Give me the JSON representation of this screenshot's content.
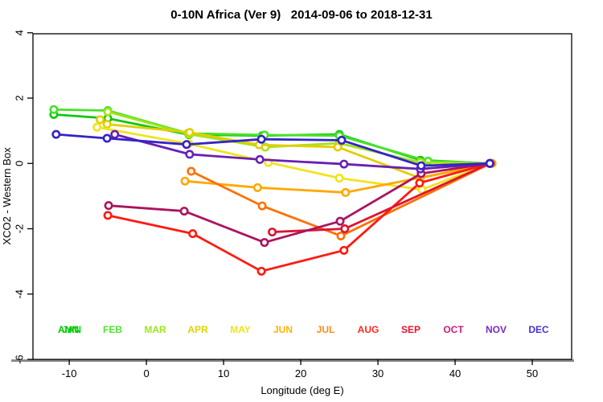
{
  "title": "0-10N Africa (Ver 9)   2014-09-06 to 2018-12-31",
  "chart_data": {
    "type": "line",
    "title": "0-10N Africa (Ver 9)   2014-09-06 to 2018-12-31",
    "xlabel": "Longitude (deg E)",
    "ylabel": "XCO2 - Western Box",
    "xlim": [
      -14.7,
      55.1
    ],
    "ylim": [
      -6.0,
      3.97
    ],
    "xticks": [
      -10,
      0,
      10,
      20,
      30,
      40,
      50
    ],
    "yticks": [
      -6,
      -4,
      -2,
      0,
      2,
      4
    ],
    "grid": false,
    "legend_position": "inside-bottom",
    "marker": "open-circle",
    "axis_color": "#000000",
    "baseline_color": "#8a8a8a",
    "series": [
      {
        "name": "JAN",
        "color": "#11C811",
        "points": [
          [
            -12,
            1.5
          ],
          [
            -5,
            1.38
          ],
          [
            5.5,
            0.88
          ],
          [
            15,
            0.85
          ],
          [
            25,
            0.89
          ],
          [
            35.5,
            0.1
          ],
          [
            44.5,
            0
          ]
        ]
      },
      {
        "name": "FEB",
        "color": "#46E22A",
        "points": [
          [
            -12,
            1.65
          ],
          [
            -5,
            1.62
          ],
          [
            5.4,
            0.92
          ],
          [
            15.3,
            0.87
          ],
          [
            25,
            0.85
          ],
          [
            36.5,
            0.07
          ],
          [
            44.5,
            0
          ]
        ]
      },
      {
        "name": "MAR",
        "color": "#A2E414",
        "points": [
          [
            -5,
            1.58
          ],
          [
            5.5,
            0.9
          ],
          [
            15.4,
            0.5
          ],
          [
            25,
            0.62
          ],
          [
            35.5,
            0.03
          ],
          [
            44.5,
            0
          ]
        ]
      },
      {
        "name": "APR",
        "color": "#E2CE00",
        "points": [
          [
            -6,
            1.34
          ],
          [
            -5.1,
            1.2
          ],
          [
            5.6,
            0.95
          ],
          [
            14.6,
            0.57
          ],
          [
            24.8,
            0.5
          ],
          [
            35.5,
            -0.45
          ],
          [
            44.5,
            0
          ]
        ]
      },
      {
        "name": "MAY",
        "color": "#F0E41E",
        "points": [
          [
            -6.4,
            1.11
          ],
          [
            5.5,
            0.6
          ],
          [
            15.8,
            0.03
          ],
          [
            25,
            -0.45
          ],
          [
            35.7,
            -0.8
          ],
          [
            44.5,
            0
          ]
        ]
      },
      {
        "name": "JUN",
        "color": "#FFA800",
        "points": [
          [
            5,
            -0.54
          ],
          [
            14.4,
            -0.74
          ],
          [
            25.8,
            -0.89
          ],
          [
            44.8,
            0
          ]
        ]
      },
      {
        "name": "JUL",
        "color": "#FF7000",
        "points": [
          [
            5.8,
            -0.24
          ],
          [
            15,
            -1.3
          ],
          [
            25.2,
            -2.22
          ],
          [
            44.6,
            0
          ]
        ]
      },
      {
        "name": "AUG",
        "color": "#FF1A10",
        "points": [
          [
            -5,
            -1.59
          ],
          [
            6,
            -2.15
          ],
          [
            14.9,
            -3.3
          ],
          [
            25.6,
            -2.66
          ],
          [
            35.4,
            -0.6
          ],
          [
            44.5,
            0
          ]
        ]
      },
      {
        "name": "SEP",
        "color": "#DE1430",
        "points": [
          [
            16.3,
            -2.1
          ],
          [
            25.7,
            -2.0
          ],
          [
            44.5,
            0
          ]
        ]
      },
      {
        "name": "OCT",
        "color": "#AA145F",
        "points": [
          [
            -4.9,
            -1.29
          ],
          [
            4.9,
            -1.46
          ],
          [
            15.3,
            -2.42
          ],
          [
            25.1,
            -1.77
          ],
          [
            35.6,
            -0.31
          ],
          [
            44.5,
            0
          ]
        ]
      },
      {
        "name": "NOV",
        "color": "#6A1FB4",
        "points": [
          [
            -4.1,
            0.89
          ],
          [
            5.6,
            0.28
          ],
          [
            14.7,
            0.12
          ],
          [
            25.6,
            -0.02
          ],
          [
            35.5,
            -0.17
          ],
          [
            44.5,
            0
          ]
        ]
      },
      {
        "name": "DEC",
        "color": "#3523C8",
        "points": [
          [
            -11.7,
            0.89
          ],
          [
            -5.1,
            0.77
          ],
          [
            5.2,
            0.58
          ],
          [
            14.9,
            0.74
          ],
          [
            25.3,
            0.71
          ],
          [
            35.6,
            -0.07
          ],
          [
            44.5,
            0
          ]
        ]
      }
    ],
    "legend": [
      {
        "label": "JAN",
        "overlay": "ANN",
        "color": "#00D400",
        "overlay_color": "#00C800"
      },
      {
        "label": "FEB",
        "color": "#4EE62E"
      },
      {
        "label": "MAR",
        "color": "#9EE818"
      },
      {
        "label": "APR",
        "color": "#E0D400"
      },
      {
        "label": "MAY",
        "color": "#F0E41E"
      },
      {
        "label": "JUN",
        "color": "#FFB400"
      },
      {
        "label": "JUL",
        "color": "#FF8A1E"
      },
      {
        "label": "AUG",
        "color": "#FF281E"
      },
      {
        "label": "SEP",
        "color": "#E6142D"
      },
      {
        "label": "OCT",
        "color": "#C81E78"
      },
      {
        "label": "NOV",
        "color": "#7828C8"
      },
      {
        "label": "DEC",
        "color": "#4632D2"
      }
    ]
  }
}
